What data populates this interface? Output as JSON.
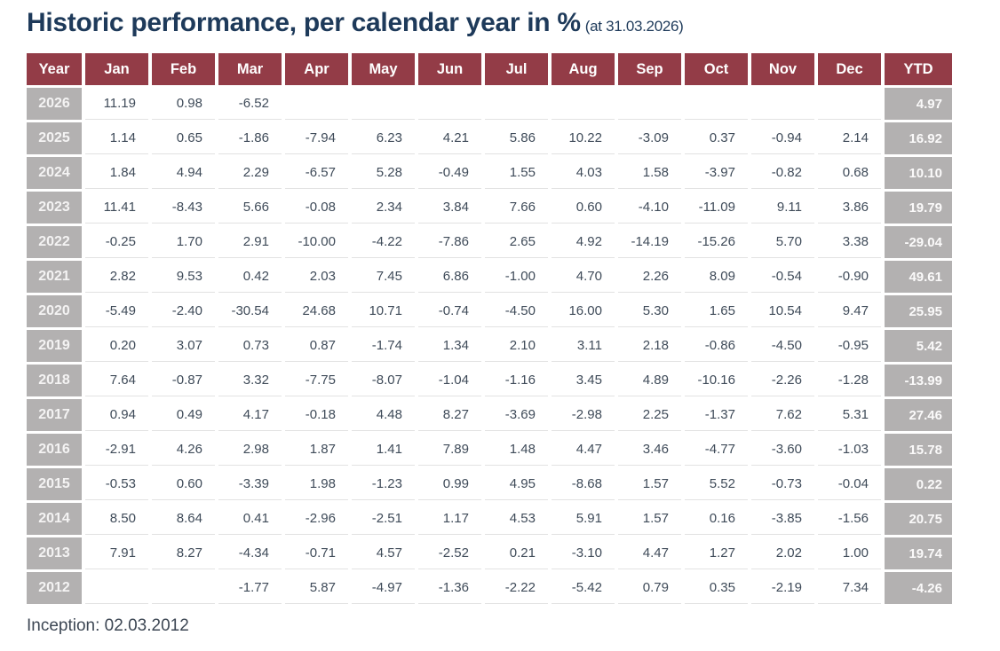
{
  "title": {
    "main": "Historic performance, per calendar year in %",
    "suffix": "(at 31.03.2026)"
  },
  "footer": {
    "inception": "Inception: 02.03.2012"
  },
  "colors": {
    "header_bg": "#933c47",
    "band_bg": "#b3b1b1",
    "title_text": "#1e3a5a",
    "cell_text": "#3f4b59",
    "row_divider": "#e2e2e2"
  },
  "chart_data": {
    "type": "table",
    "title": "Historic performance, per calendar year in %",
    "as_of_date": "31.03.2026",
    "columns": [
      "Year",
      "Jan",
      "Feb",
      "Mar",
      "Apr",
      "May",
      "Jun",
      "Jul",
      "Aug",
      "Sep",
      "Oct",
      "Nov",
      "Dec",
      "YTD"
    ],
    "rows": [
      {
        "year": "2026",
        "values": [
          "11.19",
          "0.98",
          "-6.52",
          "",
          "",
          "",
          "",
          "",
          "",
          "",
          "",
          ""
        ],
        "ytd": "4.97"
      },
      {
        "year": "2025",
        "values": [
          "1.14",
          "0.65",
          "-1.86",
          "-7.94",
          "6.23",
          "4.21",
          "5.86",
          "10.22",
          "-3.09",
          "0.37",
          "-0.94",
          "2.14"
        ],
        "ytd": "16.92"
      },
      {
        "year": "2024",
        "values": [
          "1.84",
          "4.94",
          "2.29",
          "-6.57",
          "5.28",
          "-0.49",
          "1.55",
          "4.03",
          "1.58",
          "-3.97",
          "-0.82",
          "0.68"
        ],
        "ytd": "10.10"
      },
      {
        "year": "2023",
        "values": [
          "11.41",
          "-8.43",
          "5.66",
          "-0.08",
          "2.34",
          "3.84",
          "7.66",
          "0.60",
          "-4.10",
          "-11.09",
          "9.11",
          "3.86"
        ],
        "ytd": "19.79"
      },
      {
        "year": "2022",
        "values": [
          "-0.25",
          "1.70",
          "2.91",
          "-10.00",
          "-4.22",
          "-7.86",
          "2.65",
          "4.92",
          "-14.19",
          "-15.26",
          "5.70",
          "3.38"
        ],
        "ytd": "-29.04"
      },
      {
        "year": "2021",
        "values": [
          "2.82",
          "9.53",
          "0.42",
          "2.03",
          "7.45",
          "6.86",
          "-1.00",
          "4.70",
          "2.26",
          "8.09",
          "-0.54",
          "-0.90"
        ],
        "ytd": "49.61"
      },
      {
        "year": "2020",
        "values": [
          "-5.49",
          "-2.40",
          "-30.54",
          "24.68",
          "10.71",
          "-0.74",
          "-4.50",
          "16.00",
          "5.30",
          "1.65",
          "10.54",
          "9.47"
        ],
        "ytd": "25.95"
      },
      {
        "year": "2019",
        "values": [
          "0.20",
          "3.07",
          "0.73",
          "0.87",
          "-1.74",
          "1.34",
          "2.10",
          "3.11",
          "2.18",
          "-0.86",
          "-4.50",
          "-0.95"
        ],
        "ytd": "5.42"
      },
      {
        "year": "2018",
        "values": [
          "7.64",
          "-0.87",
          "3.32",
          "-7.75",
          "-8.07",
          "-1.04",
          "-1.16",
          "3.45",
          "4.89",
          "-10.16",
          "-2.26",
          "-1.28"
        ],
        "ytd": "-13.99"
      },
      {
        "year": "2017",
        "values": [
          "0.94",
          "0.49",
          "4.17",
          "-0.18",
          "4.48",
          "8.27",
          "-3.69",
          "-2.98",
          "2.25",
          "-1.37",
          "7.62",
          "5.31"
        ],
        "ytd": "27.46"
      },
      {
        "year": "2016",
        "values": [
          "-2.91",
          "4.26",
          "2.98",
          "1.87",
          "1.41",
          "7.89",
          "1.48",
          "4.47",
          "3.46",
          "-4.77",
          "-3.60",
          "-1.03"
        ],
        "ytd": "15.78"
      },
      {
        "year": "2015",
        "values": [
          "-0.53",
          "0.60",
          "-3.39",
          "1.98",
          "-1.23",
          "0.99",
          "4.95",
          "-8.68",
          "1.57",
          "5.52",
          "-0.73",
          "-0.04"
        ],
        "ytd": "0.22"
      },
      {
        "year": "2014",
        "values": [
          "8.50",
          "8.64",
          "0.41",
          "-2.96",
          "-2.51",
          "1.17",
          "4.53",
          "5.91",
          "1.57",
          "0.16",
          "-3.85",
          "-1.56"
        ],
        "ytd": "20.75"
      },
      {
        "year": "2013",
        "values": [
          "7.91",
          "8.27",
          "-4.34",
          "-0.71",
          "4.57",
          "-2.52",
          "0.21",
          "-3.10",
          "4.47",
          "1.27",
          "2.02",
          "1.00"
        ],
        "ytd": "19.74"
      },
      {
        "year": "2012",
        "values": [
          "",
          "",
          "-1.77",
          "5.87",
          "-4.97",
          "-1.36",
          "-2.22",
          "-5.42",
          "0.79",
          "0.35",
          "-2.19",
          "7.34"
        ],
        "ytd": "-4.26"
      }
    ]
  }
}
